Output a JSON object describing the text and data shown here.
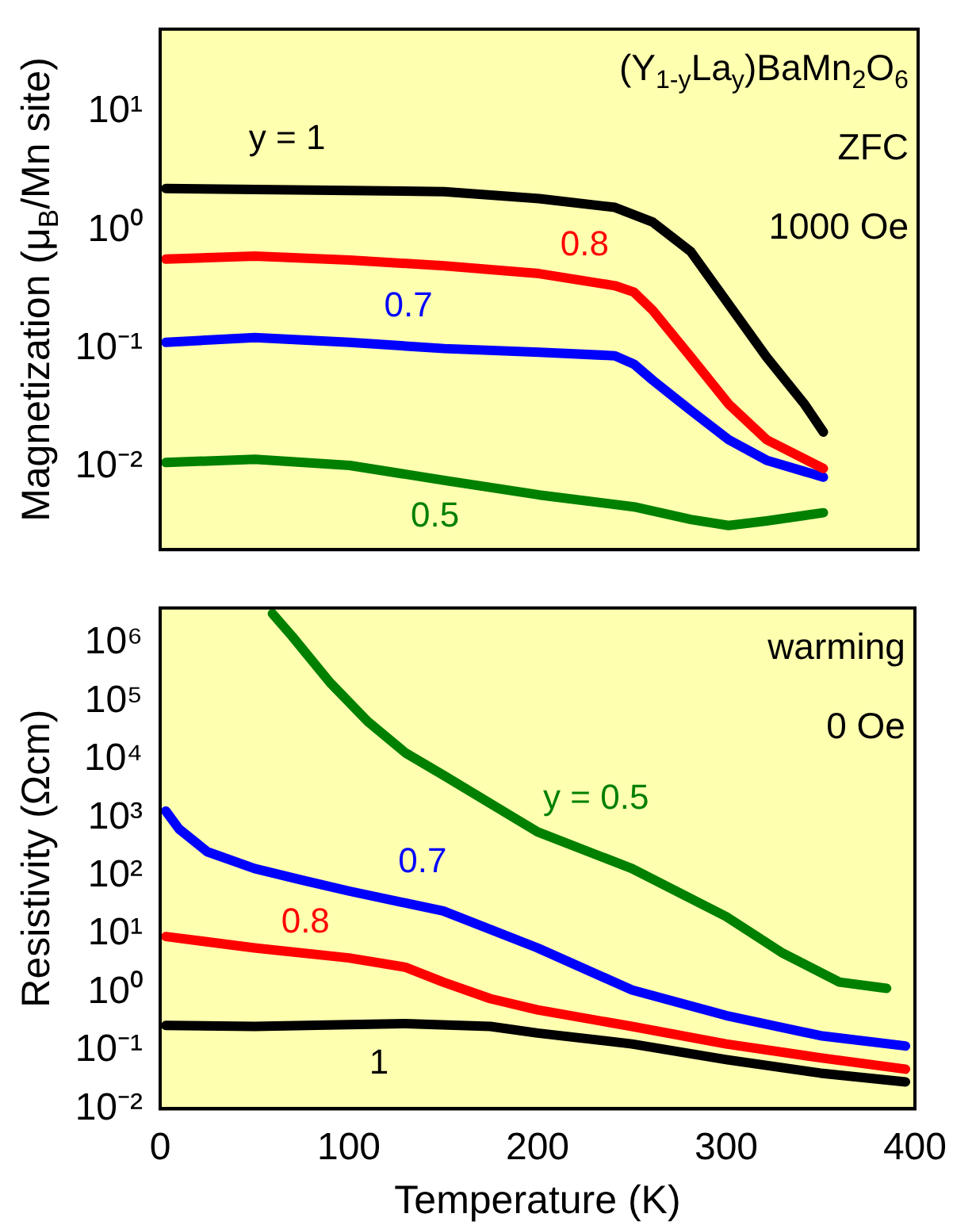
{
  "chart_data": [
    {
      "type": "line",
      "ylabel": "Magnetization (μ$_{B}$/Mn site)",
      "log": "y",
      "xlim": [
        0,
        400
      ],
      "xticks": [
        0,
        100,
        200,
        300,
        400
      ],
      "ylim": [
        0.002,
        50
      ],
      "yticks": [
        {
          "value": 0.01,
          "label": "10⁻²"
        },
        {
          "value": 0.1,
          "label": "10⁻¹"
        },
        {
          "value": 1,
          "label": "10⁰"
        },
        {
          "value": 10,
          "label": "10¹"
        }
      ],
      "tick_labels": "y",
      "marker": "none",
      "grid": false,
      "legend": false,
      "annotations": [
        "(Y$_{1-y}$La$_{y}$)BaMn$_{2}$O$_{6}$",
        "ZFC",
        "1000 Oe"
      ],
      "series": [
        {
          "name": "y = 1",
          "color": "#000000",
          "x": [
            3,
            150,
            200,
            240,
            260,
            280,
            300,
            320,
            340,
            350
          ],
          "values": [
            2.25,
            2.12,
            1.85,
            1.56,
            1.17,
            0.66,
            0.237,
            0.085,
            0.034,
            0.0197
          ]
        },
        {
          "name": "0.8",
          "color": "#ff0000",
          "x": [
            3,
            50,
            100,
            150,
            200,
            240,
            250,
            260,
            280,
            300,
            320,
            350
          ],
          "values": [
            0.57,
            0.605,
            0.56,
            0.5,
            0.43,
            0.34,
            0.3,
            0.21,
            0.085,
            0.034,
            0.017,
            0.0097
          ]
        },
        {
          "name": "0.7",
          "color": "#0000ff",
          "x": [
            3,
            50,
            100,
            150,
            200,
            240,
            250,
            260,
            280,
            300,
            320,
            350
          ],
          "values": [
            0.113,
            0.124,
            0.113,
            0.1,
            0.093,
            0.087,
            0.074,
            0.054,
            0.03,
            0.017,
            0.0114,
            0.0082
          ]
        },
        {
          "name": "0.5",
          "color": "#008000",
          "x": [
            3,
            50,
            100,
            150,
            200,
            250,
            280,
            300,
            320,
            350
          ],
          "values": [
            0.0109,
            0.0116,
            0.0103,
            0.0077,
            0.0058,
            0.0046,
            0.0036,
            0.0032,
            0.0035,
            0.0041
          ]
        }
      ]
    },
    {
      "type": "line",
      "xlabel": "Temperature (K)",
      "ylabel": "Resistivity (Ωcm)",
      "log": "y",
      "xlim": [
        0,
        400
      ],
      "xticks": [
        0,
        100,
        200,
        300,
        400
      ],
      "ylim": [
        0.01,
        4000000
      ],
      "yticks": [
        {
          "value": 0.01,
          "label": "10⁻²"
        },
        {
          "value": 0.1,
          "label": "10⁻¹"
        },
        {
          "value": 1,
          "label": "10⁰"
        },
        {
          "value": 10,
          "label": "10¹"
        },
        {
          "value": 100,
          "label": "10²"
        },
        {
          "value": 1000,
          "label": "10³"
        },
        {
          "value": 10000,
          "label": "10⁴"
        },
        {
          "value": 100000,
          "label": "10⁵"
        },
        {
          "value": 1000000,
          "label": "10⁶"
        }
      ],
      "marker": "none",
      "grid": false,
      "legend": false,
      "annotations": [
        "warming",
        "0 Oe"
      ],
      "series": [
        {
          "name": "y = 0.5",
          "color": "#008000",
          "x": [
            59.5,
            70,
            90,
            110,
            130,
            150,
            200,
            250,
            300,
            330,
            360,
            385
          ],
          "values": [
            3200000,
            1300000,
            210000,
            45000,
            13000,
            5400,
            570,
            134,
            20,
            4.7,
            1.5,
            1.17
          ]
        },
        {
          "name": "0.7",
          "color": "#0000ff",
          "x": [
            3,
            10,
            25,
            50,
            75,
            100,
            150,
            200,
            250,
            300,
            350,
            395
          ],
          "values": [
            1300,
            640,
            260,
            134,
            85,
            55,
            25,
            5.8,
            1.1,
            0.4,
            0.18,
            0.12
          ]
        },
        {
          "name": "0.8",
          "color": "#ff0000",
          "x": [
            3,
            50,
            100,
            130,
            150,
            175,
            200,
            250,
            300,
            350,
            395
          ],
          "values": [
            9.1,
            5.8,
            3.9,
            2.7,
            1.5,
            0.78,
            0.5,
            0.26,
            0.13,
            0.075,
            0.048
          ]
        },
        {
          "name": "1",
          "color": "#000000",
          "x": [
            3,
            50,
            100,
            130,
            175,
            200,
            250,
            300,
            350,
            395
          ],
          "values": [
            0.27,
            0.26,
            0.28,
            0.29,
            0.26,
            0.2,
            0.13,
            0.07,
            0.041,
            0.029
          ]
        }
      ]
    }
  ]
}
